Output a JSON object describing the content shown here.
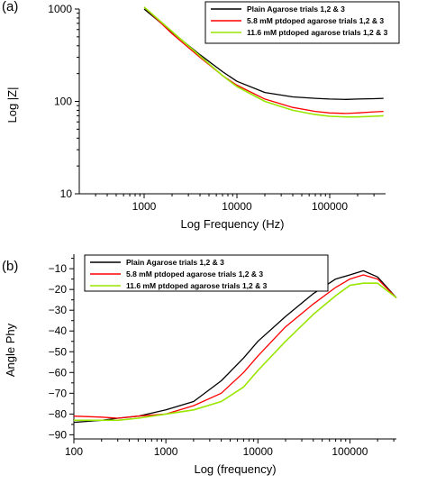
{
  "chart_data": [
    {
      "type": "line",
      "panel_label": "(a)",
      "xlabel": "Log Frequency (Hz)",
      "ylabel": "Log |Z|",
      "xscale": "log",
      "yscale": "log",
      "xlim": [
        200,
        400000
      ],
      "ylim": [
        10,
        1000
      ],
      "xticks": [
        1000,
        10000,
        100000
      ],
      "xtick_labels": [
        "1000",
        "10000",
        "100000"
      ],
      "yticks": [
        10,
        100,
        1000
      ],
      "ytick_labels": [
        "10",
        "100",
        "1000"
      ],
      "legend_position": "top-right",
      "series": [
        {
          "name": "Plain Agarose trials 1,2 & 3",
          "color": "#000000",
          "x": [
            1000,
            2000,
            4000,
            7000,
            10000,
            20000,
            40000,
            70000,
            100000,
            150000,
            200000,
            300000,
            380000
          ],
          "y": [
            1000,
            560,
            320,
            210,
            165,
            125,
            112,
            108,
            106,
            105,
            106,
            107,
            108
          ]
        },
        {
          "name": "5.8 mM ptdoped agarose trials 1,2 & 3",
          "color": "#ff0000",
          "x": [
            1000,
            2000,
            4000,
            7000,
            10000,
            20000,
            40000,
            70000,
            100000,
            150000,
            200000,
            300000,
            380000
          ],
          "y": [
            1050,
            540,
            300,
            190,
            150,
            106,
            86,
            78,
            75,
            74,
            75,
            77,
            78
          ]
        },
        {
          "name": "11.6 mM ptdoped agarose trials 1,2 & 3",
          "color": "#99e600",
          "x": [
            1000,
            2000,
            4000,
            7000,
            10000,
            20000,
            40000,
            70000,
            100000,
            150000,
            200000,
            300000,
            380000
          ],
          "y": [
            1050,
            570,
            310,
            190,
            145,
            100,
            80,
            72,
            69,
            68,
            68,
            69,
            70
          ]
        }
      ]
    },
    {
      "type": "line",
      "panel_label": "(b)",
      "xlabel": "Log (frequency)",
      "ylabel": "Angle Phy",
      "xscale": "log",
      "xlim": [
        100,
        320000
      ],
      "ylim": [
        -92,
        -3
      ],
      "xticks": [
        100,
        1000,
        10000,
        100000
      ],
      "xtick_labels": [
        "100",
        "1000",
        "10000",
        "100000"
      ],
      "yticks": [
        -90,
        -80,
        -70,
        -60,
        -50,
        -40,
        -30,
        -20,
        -10
      ],
      "ytick_labels": [
        "−90",
        "−80",
        "−70",
        "−60",
        "−50",
        "−40",
        "−30",
        "−20",
        "−10"
      ],
      "legend_position": "top-left",
      "series": [
        {
          "name": "Plain Agarose trials 1,2  & 3",
          "color": "#000000",
          "x": [
            100,
            200,
            300,
            500,
            1000,
            2000,
            4000,
            7000,
            10000,
            20000,
            40000,
            70000,
            100000,
            140000,
            200000,
            320000
          ],
          "y": [
            -84,
            -83,
            -82,
            -81,
            -78,
            -74,
            -64,
            -53,
            -45,
            -33,
            -22,
            -15,
            -13,
            -11,
            -14,
            -24
          ]
        },
        {
          "name": "5.8 mM ptdoped agarose trials 1,2 & 3",
          "color": "#ff0000",
          "x": [
            100,
            200,
            300,
            500,
            1000,
            2000,
            4000,
            7000,
            10000,
            20000,
            40000,
            70000,
            100000,
            140000,
            200000,
            320000
          ],
          "y": [
            -81,
            -81.5,
            -82,
            -81,
            -80,
            -76,
            -70,
            -60,
            -52,
            -38,
            -27,
            -19,
            -15,
            -13,
            -15,
            -24
          ]
        },
        {
          "name": "11.6 mM ptdoped agarose trials 1,2 & 3",
          "color": "#99e600",
          "x": [
            100,
            200,
            300,
            500,
            1000,
            2000,
            4000,
            7000,
            10000,
            20000,
            40000,
            70000,
            100000,
            140000,
            200000,
            320000
          ],
          "y": [
            -83,
            -83,
            -83,
            -82,
            -80,
            -78,
            -74,
            -67,
            -59,
            -45,
            -32,
            -23,
            -18,
            -17,
            -17,
            -24
          ]
        }
      ]
    }
  ]
}
